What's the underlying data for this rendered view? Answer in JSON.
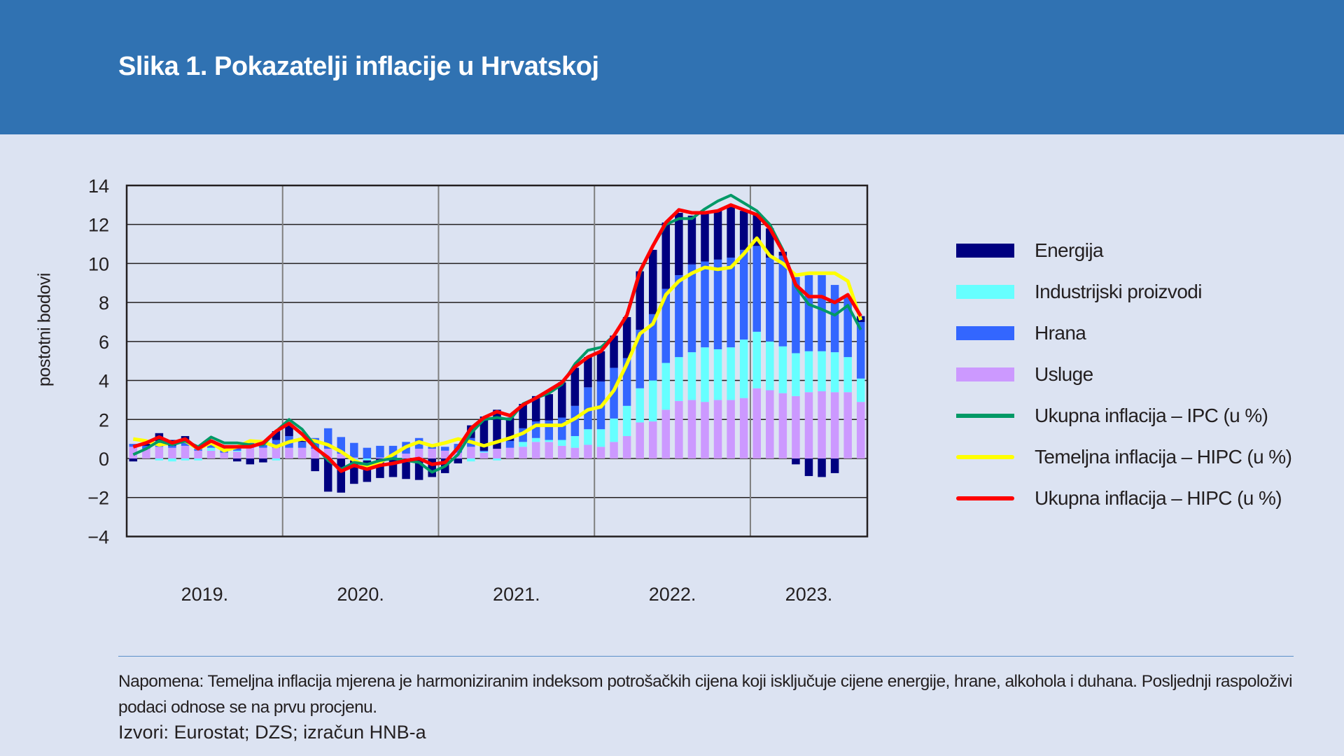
{
  "header": {
    "title": "Slika 1. Pokazatelji inflacije u Hrvatskoj"
  },
  "footer": {
    "note": "Napomena: Temeljna inflacija mjerena je harmoniziranim indeksom potrošačkih cijena koji isključuje cijene energije, hrane, alkohola i duhana. Posljednji raspoloživi podaci odnose se na prvu procjenu.",
    "sources": "Izvori: Eurostat; DZS; izračun HNB-a"
  },
  "chart_data": {
    "type": "bar",
    "title": "Slika 1. Pokazatelji inflacije u Hrvatskoj",
    "xlabel": "",
    "ylabel": "postotni bodovi",
    "ylim": [
      -4,
      14
    ],
    "yticks": [
      "14",
      "12",
      "10",
      "8",
      "6",
      "4",
      "2",
      "0",
      "−2",
      "−4"
    ],
    "ytick_values": [
      14,
      12,
      10,
      8,
      6,
      4,
      2,
      0,
      -2,
      -4
    ],
    "year_labels": [
      "2019.",
      "2020.",
      "2021.",
      "2022.",
      "2023."
    ],
    "period": "monthly, Jan 2019 – Sep 2023",
    "grid": true,
    "legend_position": "right",
    "colors": {
      "energija": "#000080",
      "industrijski": "#66ffff",
      "hrana": "#3366ff",
      "usluge": "#cc99ff",
      "ipc": "#009966",
      "temeljna": "#ffff00",
      "hipc": "#ff0000",
      "grid": "#231f20",
      "yeargrid": "#7f7f7f"
    },
    "stacked_series": [
      {
        "key": "usluge",
        "name": "Usluge",
        "values": [
          0.6,
          0.5,
          0.6,
          0.55,
          0.65,
          0.4,
          0.4,
          0.3,
          0.35,
          0.55,
          0.55,
          0.55,
          0.55,
          0.55,
          0.5,
          0.5,
          0.25,
          0.05,
          0,
          0.05,
          0,
          0.25,
          0.5,
          0.5,
          0.4,
          0.3,
          0.6,
          0.3,
          0.5,
          0.55,
          0.6,
          0.85,
          0.85,
          0.65,
          0.55,
          0.7,
          0.6,
          0.85,
          1.15,
          1.85,
          1.9,
          2.5,
          2.95,
          3.0,
          2.9,
          3.0,
          3.0,
          3.1,
          3.6,
          3.5,
          3.35,
          3.2,
          3.4,
          3.45,
          3.4,
          3.4,
          2.9
        ]
      },
      {
        "key": "industrijski",
        "name": "Industrijski proizvodi",
        "values": [
          0,
          0,
          -0.1,
          -0.15,
          -0.1,
          -0.1,
          0.15,
          0,
          0.05,
          0,
          0,
          -0.1,
          0,
          0,
          0,
          0,
          0,
          -0.1,
          -0.1,
          0,
          0,
          0,
          0,
          0,
          0,
          0,
          -0.15,
          0.05,
          -0.1,
          0,
          0.25,
          0.2,
          0.1,
          0.3,
          0.6,
          0.8,
          0.9,
          1.2,
          1.55,
          1.75,
          2.1,
          2.4,
          2.25,
          2.45,
          2.8,
          2.6,
          2.7,
          3.0,
          2.9,
          2.5,
          2.4,
          2.2,
          2.1,
          2.05,
          2.05,
          1.8,
          1.2
        ]
      },
      {
        "key": "hrana",
        "name": "Hrana",
        "values": [
          0.15,
          0.15,
          0.3,
          0.1,
          0.25,
          0.1,
          0.35,
          0.25,
          0.25,
          0.25,
          0.35,
          0.4,
          0.6,
          0.3,
          0.55,
          1.05,
          0.85,
          0.75,
          0.55,
          0.6,
          0.65,
          0.6,
          0.55,
          0.1,
          0.2,
          0.45,
          0.45,
          0.05,
          0,
          0.35,
          0.7,
          0.85,
          1.0,
          1.15,
          1.55,
          2.15,
          2.45,
          2.6,
          2.45,
          3.0,
          3.4,
          3.8,
          4.2,
          4.5,
          4.4,
          4.6,
          4.6,
          4.6,
          4.4,
          4.3,
          4.65,
          3.9,
          3.9,
          3.9,
          3.45,
          3.1,
          2.9
        ]
      },
      {
        "key": "energija",
        "name": "Energija",
        "values": [
          -0.15,
          0.1,
          0.4,
          0.3,
          0.25,
          0,
          0,
          0,
          -0.15,
          -0.3,
          -0.2,
          0.45,
          0.6,
          0.2,
          -0.65,
          -1.7,
          -1.75,
          -1.2,
          -1.1,
          -1.0,
          -0.95,
          -1.05,
          -1.1,
          -0.95,
          -0.75,
          -0.25,
          0.65,
          1.75,
          2.0,
          1.2,
          1.25,
          1.3,
          1.35,
          1.8,
          1.95,
          1.55,
          1.55,
          1.65,
          2.1,
          3.0,
          3.3,
          3.4,
          3.2,
          2.5,
          2.45,
          2.5,
          2.6,
          2.0,
          1.6,
          1.5,
          0.2,
          -0.3,
          -0.9,
          -0.95,
          -0.75,
          0,
          0.3
        ]
      }
    ],
    "line_series": [
      {
        "key": "ipc",
        "name": "Ukupna inflacija – IPC (u %)",
        "values": [
          0.2,
          0.5,
          0.9,
          0.7,
          0.9,
          0.6,
          1.1,
          0.8,
          0.8,
          0.7,
          0.7,
          1.4,
          2.0,
          1.5,
          0.65,
          -0.1,
          -0.55,
          -0.2,
          -0.3,
          -0.1,
          0,
          -0.1,
          -0.2,
          -0.7,
          -0.4,
          0.2,
          1.3,
          2.0,
          2.1,
          2.0,
          2.8,
          3.1,
          3.35,
          3.8,
          4.85,
          5.55,
          5.7,
          6.3,
          7.3,
          9.5,
          10.9,
          12.0,
          12.3,
          12.3,
          12.8,
          13.2,
          13.5,
          13.1,
          12.7,
          12.0,
          10.7,
          8.8,
          7.9,
          7.65,
          7.35,
          7.85,
          6.6
        ]
      },
      {
        "key": "temeljna",
        "name": "Temeljna inflacija – HIPC (u %)",
        "values": [
          1.0,
          0.9,
          0.7,
          0.8,
          0.9,
          0.5,
          0.8,
          0.4,
          0.6,
          0.9,
          0.85,
          0.6,
          0.85,
          1.0,
          0.9,
          0.7,
          0.35,
          -0.1,
          -0.4,
          -0.2,
          0.2,
          0.6,
          0.85,
          0.65,
          0.8,
          1.0,
          0.85,
          0.65,
          0.85,
          1.05,
          1.3,
          1.7,
          1.7,
          1.7,
          2.05,
          2.5,
          2.65,
          3.5,
          4.85,
          6.4,
          6.9,
          8.4,
          9.1,
          9.5,
          9.8,
          9.7,
          9.8,
          10.5,
          11.3,
          10.4,
          10.0,
          9.4,
          9.5,
          9.5,
          9.5,
          9.1,
          7.1
        ]
      },
      {
        "key": "hipc",
        "name": "Ukupna inflacija – HIPC (u %)",
        "values": [
          0.6,
          0.8,
          1.1,
          0.8,
          1.0,
          0.5,
          0.9,
          0.6,
          0.6,
          0.6,
          0.8,
          1.4,
          1.8,
          1.25,
          0.55,
          0.05,
          -0.65,
          -0.35,
          -0.55,
          -0.35,
          -0.25,
          -0.1,
          0,
          -0.3,
          -0.2,
          0.55,
          1.55,
          2.1,
          2.4,
          2.2,
          2.75,
          3.1,
          3.5,
          3.9,
          4.7,
          5.2,
          5.5,
          6.3,
          7.35,
          9.6,
          10.9,
          12.1,
          12.75,
          12.6,
          12.6,
          12.7,
          13.0,
          12.75,
          12.5,
          11.8,
          10.6,
          8.9,
          8.3,
          8.3,
          8.0,
          8.4,
          7.3
        ]
      }
    ],
    "legend": [
      "Energija",
      "Industrijski proizvodi",
      "Hrana",
      "Usluge",
      "Ukupna inflacija – IPC (u %)",
      "Temeljna inflacija – HIPC (u %)",
      "Ukupna inflacija – HIPC (u %)"
    ]
  }
}
